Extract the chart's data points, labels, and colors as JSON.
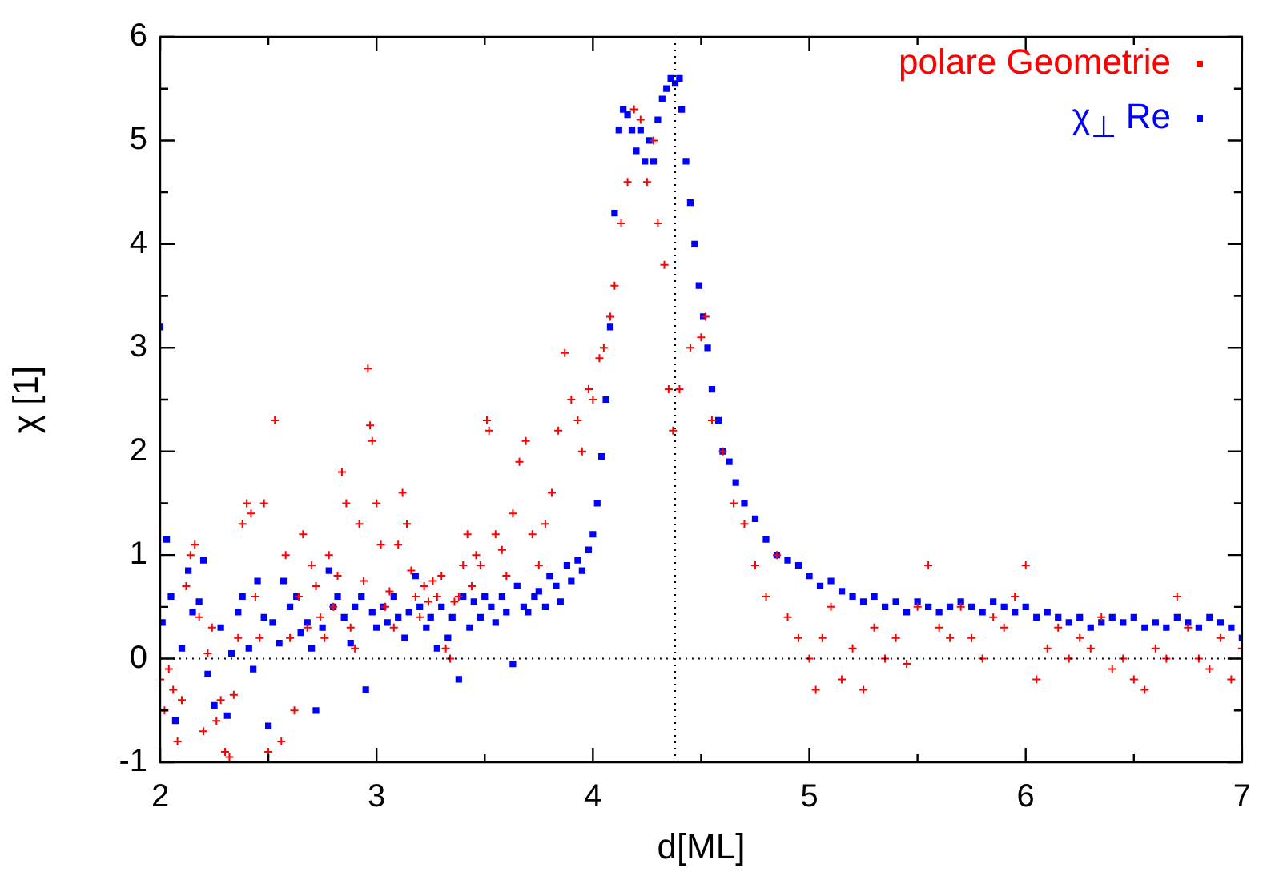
{
  "chart_data": {
    "type": "scatter",
    "xlabel": "d[ML]",
    "ylabel": "χ [1]",
    "xlim": [
      2,
      7
    ],
    "ylim": [
      -1,
      6
    ],
    "xticks": [
      2,
      {
        "value": 2.5,
        "label": null
      },
      3,
      {
        "value": 3.5,
        "label": null
      },
      4,
      {
        "value": 4.5,
        "label": null
      },
      5,
      {
        "value": 5.5,
        "label": null
      },
      6,
      {
        "value": 6.5,
        "label": null
      },
      7
    ],
    "yticks": [
      -1,
      {
        "value": -0.5,
        "label": null
      },
      0,
      {
        "value": 0.5,
        "label": null
      },
      1,
      {
        "value": 1.5,
        "label": null
      },
      2,
      {
        "value": 2.5,
        "label": null
      },
      3,
      {
        "value": 3.5,
        "label": null
      },
      4,
      {
        "value": 4.5,
        "label": null
      },
      5,
      {
        "value": 5.5,
        "label": null
      },
      6
    ],
    "grid": false,
    "legend": "top right",
    "ref_lines": [
      {
        "axis": "x",
        "value": 4.38,
        "line_style": "dotted",
        "color": "#000000"
      },
      {
        "axis": "y",
        "value": 0,
        "line_style": "dotted",
        "color": "#000000"
      }
    ],
    "series": [
      {
        "name": "polare Geometrie",
        "color": "#ff0000",
        "marker": "cross",
        "x": [
          2.0,
          2.02,
          2.04,
          2.06,
          2.08,
          2.1,
          2.12,
          2.14,
          2.16,
          2.18,
          2.2,
          2.22,
          2.24,
          2.26,
          2.28,
          2.3,
          2.32,
          2.34,
          2.36,
          2.38,
          2.4,
          2.42,
          2.44,
          2.46,
          2.48,
          2.5,
          2.53,
          2.56,
          2.58,
          2.6,
          2.62,
          2.64,
          2.66,
          2.68,
          2.7,
          2.72,
          2.74,
          2.76,
          2.78,
          2.8,
          2.82,
          2.84,
          2.86,
          2.88,
          2.9,
          2.92,
          2.94,
          2.96,
          2.97,
          2.98,
          3.0,
          3.02,
          3.04,
          3.06,
          3.08,
          3.1,
          3.12,
          3.14,
          3.16,
          3.18,
          3.2,
          3.22,
          3.24,
          3.26,
          3.28,
          3.3,
          3.32,
          3.34,
          3.36,
          3.38,
          3.4,
          3.42,
          3.44,
          3.46,
          3.48,
          3.51,
          3.52,
          3.55,
          3.58,
          3.6,
          3.63,
          3.66,
          3.69,
          3.72,
          3.75,
          3.78,
          3.81,
          3.84,
          3.87,
          3.9,
          3.93,
          3.95,
          3.98,
          4.0,
          4.03,
          4.05,
          4.08,
          4.1,
          4.13,
          4.16,
          4.19,
          4.22,
          4.25,
          4.28,
          4.3,
          4.33,
          4.35,
          4.37,
          4.4,
          4.45,
          4.5,
          4.52,
          4.55,
          4.6,
          4.65,
          4.7,
          4.75,
          4.8,
          4.85,
          4.9,
          4.95,
          5.0,
          5.03,
          5.06,
          5.1,
          5.15,
          5.2,
          5.25,
          5.3,
          5.35,
          5.4,
          5.45,
          5.5,
          5.55,
          5.6,
          5.65,
          5.7,
          5.75,
          5.8,
          5.85,
          5.9,
          5.95,
          6.0,
          6.05,
          6.1,
          6.15,
          6.2,
          6.25,
          6.3,
          6.35,
          6.4,
          6.45,
          6.5,
          6.55,
          6.6,
          6.65,
          6.7,
          6.75,
          6.8,
          6.85,
          6.9,
          6.95,
          7.0
        ],
        "values": [
          -0.2,
          -0.5,
          -0.1,
          -0.3,
          -0.8,
          -0.4,
          0.7,
          1.0,
          1.1,
          0.4,
          -0.7,
          0.05,
          0.3,
          -0.6,
          -0.4,
          -0.9,
          -0.95,
          -0.35,
          0.2,
          1.3,
          1.5,
          1.4,
          0.6,
          0.2,
          1.5,
          -0.9,
          2.3,
          -0.8,
          1.0,
          0.2,
          -0.5,
          0.6,
          1.2,
          0.3,
          0.9,
          0.7,
          0.4,
          0.2,
          1.0,
          0.5,
          0.8,
          1.8,
          1.5,
          0.3,
          0.1,
          1.3,
          0.75,
          2.8,
          2.25,
          2.1,
          1.5,
          1.1,
          0.5,
          0.65,
          0.3,
          1.1,
          1.6,
          1.3,
          0.85,
          0.6,
          0.4,
          0.7,
          0.55,
          0.75,
          0.6,
          0.8,
          0.1,
          0.0,
          0.55,
          0.6,
          0.9,
          1.2,
          0.7,
          1.0,
          0.9,
          2.3,
          2.2,
          1.2,
          1.05,
          0.8,
          1.4,
          1.9,
          2.1,
          1.2,
          0.9,
          1.3,
          1.6,
          2.2,
          2.95,
          2.5,
          2.3,
          2.0,
          2.6,
          2.5,
          2.9,
          3.0,
          3.3,
          3.6,
          4.2,
          4.6,
          5.3,
          5.2,
          4.6,
          5.0,
          4.2,
          3.8,
          2.6,
          2.2,
          2.6,
          3.0,
          3.1,
          3.3,
          2.3,
          2.0,
          1.5,
          1.3,
          0.9,
          0.6,
          1.0,
          0.4,
          0.2,
          0.0,
          -0.3,
          0.2,
          0.5,
          -0.2,
          0.1,
          -0.3,
          0.3,
          0.0,
          0.2,
          -0.05,
          0.5,
          0.9,
          0.3,
          0.2,
          0.5,
          0.2,
          0.0,
          0.4,
          0.3,
          0.6,
          0.9,
          -0.2,
          0.1,
          0.3,
          0.0,
          0.2,
          0.1,
          0.4,
          -0.1,
          0.0,
          -0.2,
          -0.3,
          0.1,
          0.0,
          0.6,
          0.3,
          0.0,
          -0.1,
          0.2,
          -0.2,
          0.1
        ]
      },
      {
        "name": "χ$_{⊥}$ Re",
        "color": "#0000ff",
        "marker": "square",
        "x": [
          2.0,
          2.01,
          2.03,
          2.05,
          2.07,
          2.1,
          2.13,
          2.15,
          2.18,
          2.2,
          2.22,
          2.25,
          2.28,
          2.31,
          2.33,
          2.36,
          2.38,
          2.41,
          2.43,
          2.45,
          2.48,
          2.5,
          2.52,
          2.55,
          2.57,
          2.6,
          2.63,
          2.65,
          2.68,
          2.7,
          2.72,
          2.75,
          2.78,
          2.8,
          2.82,
          2.85,
          2.88,
          2.9,
          2.93,
          2.95,
          2.98,
          3.0,
          3.03,
          3.05,
          3.08,
          3.1,
          3.13,
          3.15,
          3.18,
          3.2,
          3.23,
          3.25,
          3.28,
          3.3,
          3.33,
          3.35,
          3.38,
          3.4,
          3.43,
          3.45,
          3.48,
          3.5,
          3.53,
          3.55,
          3.58,
          3.6,
          3.63,
          3.65,
          3.68,
          3.7,
          3.73,
          3.75,
          3.78,
          3.8,
          3.83,
          3.85,
          3.88,
          3.9,
          3.93,
          3.95,
          3.98,
          4.0,
          4.02,
          4.04,
          4.06,
          4.08,
          4.1,
          4.12,
          4.14,
          4.16,
          4.18,
          4.2,
          4.22,
          4.24,
          4.26,
          4.28,
          4.3,
          4.32,
          4.34,
          4.36,
          4.38,
          4.4,
          4.41,
          4.43,
          4.45,
          4.47,
          4.49,
          4.51,
          4.53,
          4.55,
          4.58,
          4.6,
          4.63,
          4.66,
          4.7,
          4.75,
          4.8,
          4.85,
          4.9,
          4.95,
          5.0,
          5.05,
          5.1,
          5.15,
          5.2,
          5.25,
          5.3,
          5.35,
          5.4,
          5.45,
          5.5,
          5.55,
          5.6,
          5.65,
          5.7,
          5.75,
          5.8,
          5.85,
          5.9,
          5.95,
          6.0,
          6.05,
          6.1,
          6.15,
          6.2,
          6.25,
          6.3,
          6.35,
          6.4,
          6.45,
          6.5,
          6.55,
          6.6,
          6.65,
          6.7,
          6.75,
          6.8,
          6.85,
          6.9,
          6.95,
          7.0
        ],
        "values": [
          3.2,
          0.35,
          1.15,
          0.6,
          -0.6,
          0.1,
          0.85,
          0.45,
          0.55,
          0.95,
          -0.15,
          -0.45,
          0.3,
          -0.55,
          0.05,
          0.45,
          0.6,
          0.1,
          -0.1,
          0.75,
          0.4,
          -0.65,
          0.35,
          0.15,
          0.75,
          0.5,
          0.6,
          0.25,
          0.35,
          0.1,
          -0.5,
          0.3,
          0.85,
          0.5,
          0.6,
          0.4,
          0.15,
          0.5,
          0.6,
          -0.3,
          0.45,
          0.3,
          0.5,
          0.35,
          0.6,
          0.4,
          0.2,
          0.45,
          0.8,
          0.5,
          0.3,
          0.4,
          0.1,
          0.5,
          0.2,
          0.4,
          -0.2,
          0.6,
          0.3,
          0.55,
          0.4,
          0.6,
          0.5,
          0.35,
          0.6,
          0.45,
          -0.05,
          0.7,
          0.5,
          0.45,
          0.6,
          0.65,
          0.5,
          0.8,
          0.7,
          0.55,
          0.9,
          0.75,
          0.95,
          0.85,
          1.05,
          1.2,
          1.5,
          1.95,
          2.5,
          3.2,
          4.3,
          5.1,
          5.3,
          5.25,
          5.1,
          4.9,
          5.1,
          4.8,
          5.0,
          4.8,
          5.2,
          5.4,
          5.5,
          5.6,
          5.55,
          5.6,
          5.3,
          4.8,
          4.4,
          4.0,
          3.6,
          3.3,
          3.0,
          2.6,
          2.3,
          2.0,
          1.9,
          1.7,
          1.5,
          1.35,
          1.15,
          1.0,
          0.95,
          0.9,
          0.8,
          0.7,
          0.75,
          0.65,
          0.6,
          0.55,
          0.6,
          0.5,
          0.55,
          0.45,
          0.55,
          0.5,
          0.45,
          0.5,
          0.55,
          0.5,
          0.45,
          0.55,
          0.5,
          0.45,
          0.5,
          0.4,
          0.45,
          0.4,
          0.35,
          0.4,
          0.3,
          0.35,
          0.4,
          0.35,
          0.4,
          0.3,
          0.35,
          0.3,
          0.4,
          0.35,
          0.3,
          0.4,
          0.35,
          0.3,
          0.2
        ]
      }
    ]
  }
}
